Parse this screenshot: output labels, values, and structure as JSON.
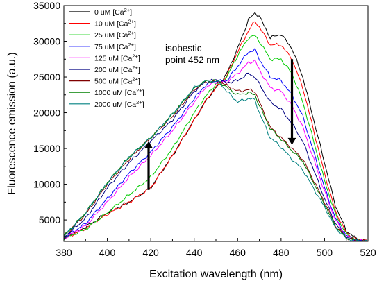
{
  "chart_data": {
    "type": "line",
    "title": "",
    "xlabel": "Excitation wavelength (nm)",
    "ylabel": "Fluorescence emission (a.u.)",
    "xlim": [
      380,
      520
    ],
    "ylim": [
      2000,
      35000
    ],
    "xticks": [
      380,
      400,
      420,
      440,
      460,
      480,
      500,
      520
    ],
    "yticks": [
      5000,
      10000,
      15000,
      20000,
      25000,
      30000,
      35000
    ],
    "grid": false,
    "legend_position": "top-left",
    "x": [
      380,
      390,
      400,
      410,
      420,
      430,
      440,
      445,
      450,
      452,
      455,
      460,
      465,
      468,
      470,
      475,
      480,
      485,
      490,
      495,
      500,
      505,
      510,
      515,
      520
    ],
    "series": [
      {
        "name_prefix": "0 uM [Ca",
        "name_suffix": "]",
        "color": "#000000",
        "values": [
          2500,
          4000,
          6000,
          7500,
          9500,
          14000,
          19000,
          21500,
          23500,
          24000,
          25500,
          29000,
          33000,
          34000,
          33500,
          30500,
          31000,
          29000,
          25000,
          19000,
          13000,
          7000,
          3500,
          2300,
          2000
        ]
      },
      {
        "name_prefix": "10 uM [Ca",
        "name_suffix": "]",
        "color": "#ff0000",
        "values": [
          2400,
          3800,
          5800,
          7500,
          9500,
          14000,
          19000,
          21500,
          23600,
          24000,
          25200,
          28500,
          31500,
          32800,
          32000,
          29500,
          29500,
          27500,
          23500,
          17500,
          11500,
          6200,
          3200,
          2200,
          2000
        ]
      },
      {
        "name_prefix": "25 uM [Ca",
        "name_suffix": "]",
        "color": "#00cc00",
        "values": [
          2400,
          3700,
          6000,
          8500,
          11000,
          15000,
          20000,
          22200,
          24000,
          24200,
          25000,
          28000,
          30500,
          30800,
          30000,
          27500,
          27500,
          25500,
          21500,
          16000,
          10500,
          5800,
          3000,
          2200,
          2000
        ]
      },
      {
        "name_prefix": "75 uM [Ca",
        "name_suffix": "]",
        "color": "#0000ff",
        "values": [
          2500,
          4500,
          8000,
          11500,
          14500,
          18000,
          22000,
          23800,
          24500,
          24400,
          24500,
          26500,
          28500,
          28800,
          27500,
          25000,
          24500,
          22500,
          19500,
          14500,
          9500,
          5200,
          2800,
          2100,
          2000
        ]
      },
      {
        "name_prefix": "125 uM [Ca",
        "name_suffix": "]",
        "color": "#ff00ff",
        "values": [
          2400,
          4200,
          7500,
          11000,
          14000,
          17500,
          21500,
          23500,
          24300,
          24300,
          24300,
          25500,
          27000,
          27300,
          26000,
          23500,
          23000,
          21000,
          18000,
          13500,
          9000,
          5000,
          2700,
          2100,
          2000
        ]
      },
      {
        "name_prefix": "200 uM [Ca",
        "name_suffix": "]",
        "color": "#000080",
        "values": [
          2600,
          5200,
          9500,
          13000,
          16000,
          19000,
          23000,
          24300,
          24600,
          24400,
          24200,
          24500,
          25500,
          25000,
          24000,
          21500,
          20500,
          18500,
          16000,
          12000,
          8000,
          4500,
          2600,
          2100,
          2000
        ]
      },
      {
        "name_prefix": "500 uM [Ca",
        "name_suffix": "]",
        "color": "#800000",
        "values": [
          2700,
          5800,
          10000,
          13500,
          16500,
          19500,
          23200,
          24300,
          24400,
          24300,
          23800,
          23000,
          23200,
          23000,
          21500,
          18000,
          16500,
          15000,
          13500,
          10500,
          7500,
          4200,
          2500,
          2100,
          2000
        ]
      },
      {
        "name_prefix": "1000 uM [Ca",
        "name_suffix": "]",
        "color": "#008000",
        "values": [
          2700,
          6000,
          10200,
          13800,
          16500,
          19800,
          23400,
          24400,
          24500,
          24300,
          23500,
          22500,
          22800,
          22500,
          21000,
          17800,
          16300,
          14700,
          13200,
          10200,
          7200,
          4100,
          2500,
          2100,
          2000
        ]
      },
      {
        "name_prefix": "2000 uM [Ca",
        "name_suffix": "]",
        "color": "#008080",
        "values": [
          2700,
          6000,
          10200,
          13800,
          16500,
          19800,
          23500,
          24400,
          24400,
          24100,
          23000,
          21500,
          22000,
          21800,
          20000,
          16500,
          15200,
          13500,
          12000,
          9400,
          6800,
          3900,
          2400,
          2100,
          2000
        ]
      }
    ],
    "legend_superscript": "2+",
    "annotations": [
      {
        "line1": "isobestic",
        "line2": "point 452 nm",
        "x": 452,
        "y": 27500
      },
      {
        "type": "arrow",
        "direction": "up",
        "x": 419,
        "y_from": 9200,
        "y_to": 16000
      },
      {
        "type": "arrow",
        "direction": "down",
        "x": 485,
        "y_from": 27500,
        "y_to": 15500
      }
    ]
  }
}
